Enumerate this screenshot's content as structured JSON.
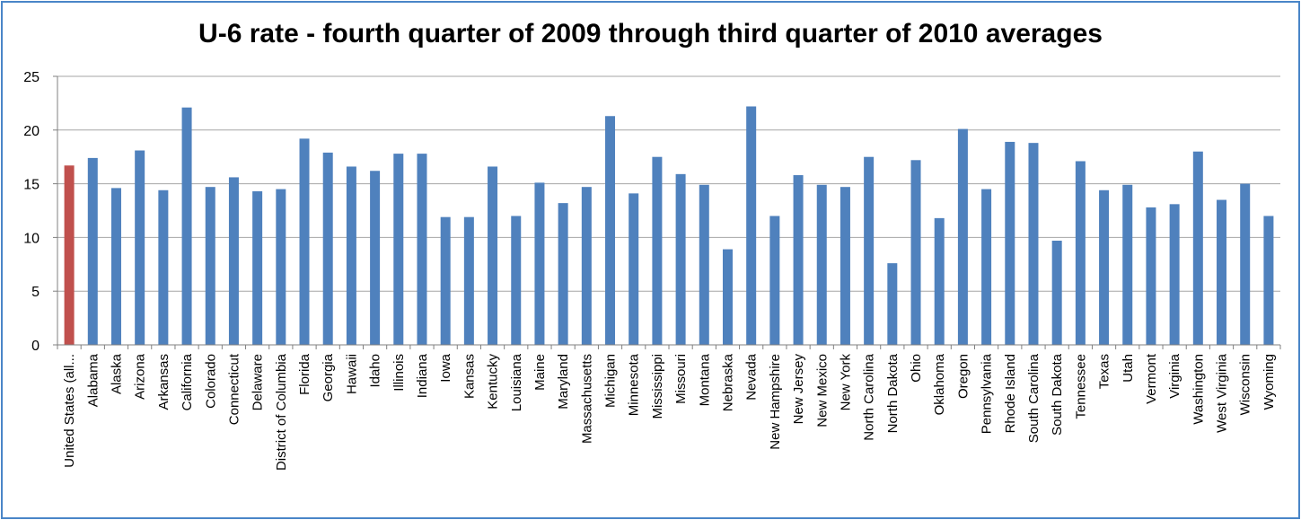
{
  "chart_data": {
    "type": "bar",
    "title": "U-6 rate - fourth quarter of 2009 through third quarter of 2010 averages",
    "xlabel": "",
    "ylabel": "",
    "ylim": [
      0,
      25
    ],
    "yticks": [
      0,
      5,
      10,
      15,
      20,
      25
    ],
    "grid": true,
    "legend": "none",
    "colors": {
      "bar": "#4f81bd",
      "highlight": "#c0504d",
      "grid": "#a6a6a6",
      "frame": "#4a86c8"
    },
    "highlight_index": 0,
    "categories": [
      "United States (all...",
      "Alabama",
      "Alaska",
      "Arizona",
      "Arkansas",
      "California",
      "Colorado",
      "Connecticut",
      "Delaware",
      "District of Columbia",
      "Florida",
      "Georgia",
      "Hawaii",
      "Idaho",
      "Illinois",
      "Indiana",
      "Iowa",
      "Kansas",
      "Kentucky",
      "Louisiana",
      "Maine",
      "Maryland",
      "Massachusetts",
      "Michigan",
      "Minnesota",
      "Mississippi",
      "Missouri",
      "Montana",
      "Nebraska",
      "Nevada",
      "New Hampshire",
      "New Jersey",
      "New Mexico",
      "New York",
      "North Carolina",
      "North Dakota",
      "Ohio",
      "Oklahoma",
      "Oregon",
      "Pennsylvania",
      "Rhode Island",
      "South Carolina",
      "South Dakota",
      "Tennessee",
      "Texas",
      "Utah",
      "Vermont",
      "Virginia",
      "Washington",
      "West Virginia",
      "Wisconsin",
      "Wyoming"
    ],
    "values": [
      16.7,
      17.4,
      14.6,
      18.1,
      14.4,
      22.1,
      14.7,
      15.6,
      14.3,
      14.5,
      19.2,
      17.9,
      16.6,
      16.2,
      17.8,
      17.8,
      11.9,
      11.9,
      16.6,
      12.0,
      15.1,
      13.2,
      14.7,
      21.3,
      14.1,
      17.5,
      15.9,
      14.9,
      8.9,
      22.2,
      12.0,
      15.8,
      14.9,
      14.7,
      17.5,
      7.6,
      17.2,
      11.8,
      20.1,
      14.5,
      18.9,
      18.8,
      9.7,
      17.1,
      14.4,
      14.9,
      12.8,
      13.1,
      18.0,
      13.5,
      15.0,
      12.0
    ]
  }
}
